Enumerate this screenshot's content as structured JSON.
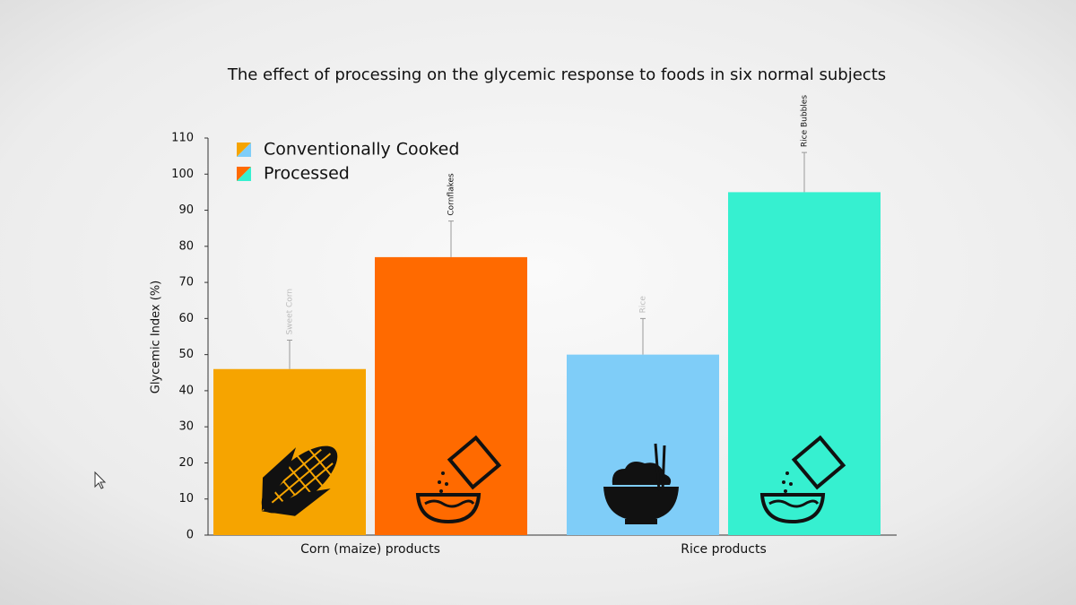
{
  "chart_data": {
    "type": "bar",
    "title": "The effect of processing on the glycemic response to foods in six normal subjects",
    "y_label": "Glycemic Index (%)",
    "categories": [
      "Corn (maize) products",
      "Rice products"
    ],
    "series": [
      {
        "name": "Conventionally Cooked",
        "colors": [
          "#f6a400",
          "#7fcdf8"
        ],
        "values": [
          46,
          50
        ],
        "errors": [
          8,
          10
        ],
        "bar_labels": [
          "Sweet Corn",
          "Rice"
        ]
      },
      {
        "name": "Processed",
        "colors": [
          "#ff6a00",
          "#36f0d0"
        ],
        "values": [
          77,
          95
        ],
        "errors": [
          10,
          11
        ],
        "bar_labels": [
          "Cornflakes",
          "Rice Bubbles"
        ]
      }
    ],
    "ylim": [
      0,
      110
    ],
    "yticks": [
      0,
      10,
      20,
      30,
      40,
      50,
      60,
      70,
      80,
      90,
      100,
      110
    ]
  }
}
